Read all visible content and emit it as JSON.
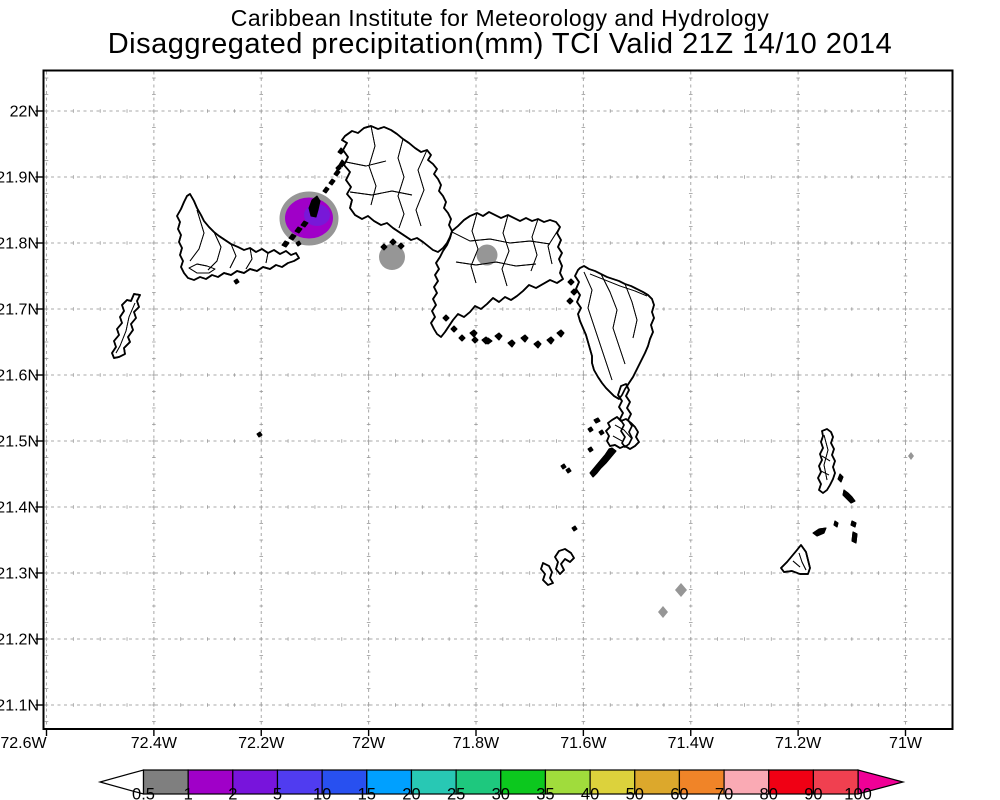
{
  "title": {
    "line1": "Caribbean Institute for Meteorology and Hydrology",
    "line2": "Disaggregated precipitation(mm) TCI Valid 21Z 14/10 2014"
  },
  "axes": {
    "y_labels": [
      "22N",
      "21.9N",
      "21.8N",
      "21.7N",
      "21.6N",
      "21.5N",
      "21.4N",
      "21.3N",
      "21.2N",
      "21.1N"
    ],
    "x_labels": [
      "72.6W",
      "72.4W",
      "72.2W",
      "72W",
      "71.8W",
      "71.6W",
      "71.4W",
      "71.2W",
      "71W"
    ]
  },
  "colorbar": {
    "tick_labels": [
      "0.5",
      "1",
      "2",
      "5",
      "10",
      "15",
      "20",
      "25",
      "30",
      "35",
      "40",
      "50",
      "60",
      "70",
      "80",
      "90",
      "100"
    ],
    "box_colors": [
      "#7F7F7F",
      "#A000C8",
      "#7814DC",
      "#503CF0",
      "#2850F0",
      "#00A0FF",
      "#28C8B4",
      "#1EC87E",
      "#0CC81E",
      "#A0DC3C",
      "#DCD23C",
      "#DCA82C",
      "#F08428",
      "#FAAAB4",
      "#F00014",
      "#F04050"
    ],
    "underflow_color": "#FFFFFF",
    "overflow_color": "#F00096"
  },
  "precip_colors": {
    "gray": "#969696",
    "magenta": "#A000C8",
    "violet": "#7818D8"
  },
  "map_data": {
    "type": "map",
    "region": "Turks and Caicos Islands",
    "lon_range": [
      "72.6W",
      "71W"
    ],
    "lat_range": [
      "21.1N",
      "22N"
    ],
    "grid": "dashed",
    "units": "mm",
    "features": [
      {
        "name": "precipitation-maximum",
        "lon": "72.12W",
        "lat": "21.84N",
        "value_mm": "2-5"
      },
      {
        "name": "precipitation-cell",
        "lon": "71.95W",
        "lat": "21.78N",
        "value_mm": "0.5-1"
      },
      {
        "name": "precipitation-cell",
        "lon": "71.78W",
        "lat": "21.78N",
        "value_mm": "0.5-1"
      },
      {
        "name": "precipitation-speck",
        "lon": "71.42W",
        "lat": "21.28N",
        "value_mm": "0.5-1"
      },
      {
        "name": "precipitation-speck",
        "lon": "71.45W",
        "lat": "21.24N",
        "value_mm": "0.5-1"
      },
      {
        "name": "precipitation-speck",
        "lon": "71.00W",
        "lat": "21.48N",
        "value_mm": "0.5-1"
      }
    ]
  }
}
